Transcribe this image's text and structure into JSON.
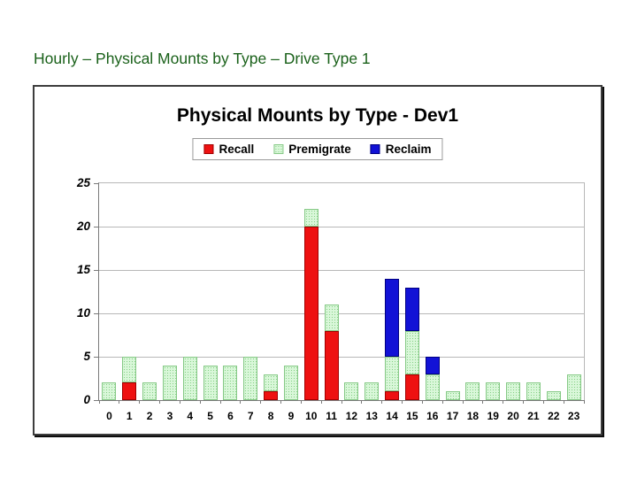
{
  "page": {
    "title": "Hourly – Physical Mounts by Type – Drive Type 1",
    "title_color": "#1a611a"
  },
  "chart": {
    "title": "Physical Mounts by Type - Dev1"
  },
  "chart_data": {
    "type": "bar",
    "stacked": true,
    "title": "Physical Mounts by Type - Dev1",
    "xlabel": "",
    "ylabel": "",
    "categories": [
      "0",
      "1",
      "2",
      "3",
      "4",
      "5",
      "6",
      "7",
      "8",
      "9",
      "10",
      "11",
      "12",
      "13",
      "14",
      "15",
      "16",
      "17",
      "18",
      "19",
      "20",
      "21",
      "22",
      "23"
    ],
    "series": [
      {
        "name": "Recall",
        "fill": "#ee1111",
        "border": "#a00000",
        "pattern": false,
        "values": [
          0,
          2,
          0,
          0,
          0,
          0,
          0,
          0,
          1,
          0,
          20,
          8,
          0,
          0,
          1,
          3,
          0,
          0,
          0,
          0,
          0,
          0,
          0,
          0
        ]
      },
      {
        "name": "Premigrate",
        "fill": "#d9f7d9",
        "border": "#86c986",
        "pattern": true,
        "values": [
          2,
          3,
          2,
          4,
          5,
          4,
          4,
          5,
          2,
          4,
          2,
          3,
          2,
          2,
          4,
          5,
          3,
          1,
          2,
          2,
          2,
          2,
          1,
          3
        ]
      },
      {
        "name": "Reclaim",
        "fill": "#1212d6",
        "border": "#000080",
        "pattern": false,
        "values": [
          0,
          0,
          0,
          0,
          0,
          0,
          0,
          0,
          0,
          0,
          0,
          0,
          0,
          0,
          9,
          5,
          2,
          0,
          0,
          0,
          0,
          0,
          0,
          0
        ]
      }
    ],
    "ylim": [
      0,
      25
    ],
    "yticks": [
      0,
      5,
      10,
      15,
      20,
      25
    ],
    "grid": true,
    "legend_position": "top-center",
    "legend_entries": [
      "Recall",
      "Premigrate",
      "Reclaim"
    ]
  }
}
